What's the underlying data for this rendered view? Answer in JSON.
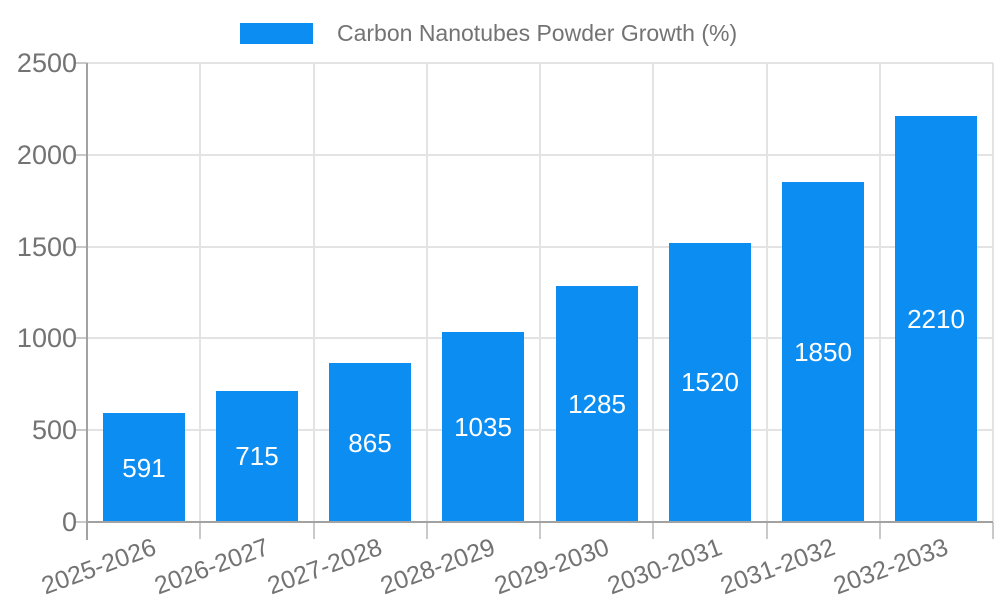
{
  "legend": {
    "label": "Carbon Nanotubes Powder Growth (%)",
    "swatch_color": "#0c8df2",
    "position": "top"
  },
  "chart_data": {
    "type": "bar",
    "title": "Carbon Nanotubes Powder Growth (%)",
    "categories": [
      "2025-2026",
      "2026-2027",
      "2027-2028",
      "2028-2029",
      "2029-2030",
      "2030-2031",
      "2031-2032",
      "2032-2033"
    ],
    "values": [
      591,
      715,
      865,
      1035,
      1285,
      1520,
      1850,
      2210
    ],
    "series": [
      {
        "name": "Carbon Nanotubes Powder Growth (%)",
        "values": [
          591,
          715,
          865,
          1035,
          1285,
          1520,
          1850,
          2210
        ]
      }
    ],
    "xlabel": "",
    "ylabel": "",
    "ylim": [
      0,
      2500
    ],
    "yticks": [
      0,
      500,
      1000,
      1500,
      2000,
      2500
    ],
    "grid": true,
    "legend_position": "top",
    "x_label_rotation_deg": -20,
    "colors": {
      "bar": "#0c8df2",
      "value_label": "#ffffff",
      "grid": "#e3e3e3",
      "axis": "#a2a2a2",
      "tick": "#c9c9c9",
      "text": "#737373"
    }
  }
}
